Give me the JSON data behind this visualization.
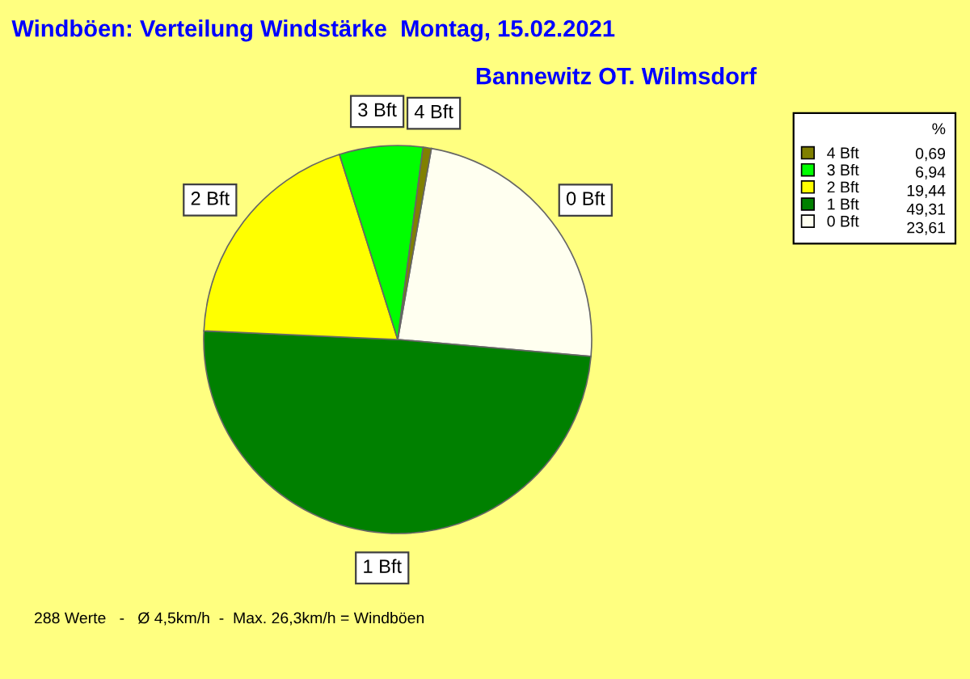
{
  "chart_data": {
    "type": "pie",
    "title": "Windböen: Verteilung Windstärke  Montag, 15.02.2021",
    "subtitle": "Bannewitz OT. Wilmsdorf",
    "legend_title": "%",
    "legend": "top right",
    "categories": [
      "0 Bft",
      "1 Bft",
      "2 Bft",
      "3 Bft",
      "4 Bft"
    ],
    "values": [
      23.61,
      49.31,
      19.44,
      6.94,
      0.69
    ],
    "value_labels": [
      "23,61",
      "49,31",
      "19,44",
      "6,94",
      "0,69"
    ],
    "colors": [
      "#fffff0",
      "#008000",
      "#ffff00",
      "#00ff00",
      "#808000"
    ],
    "annotations": [
      "288 Werte   -   Ø 4,5km/h  -  Max. 26,3km/h = Windböen"
    ]
  }
}
